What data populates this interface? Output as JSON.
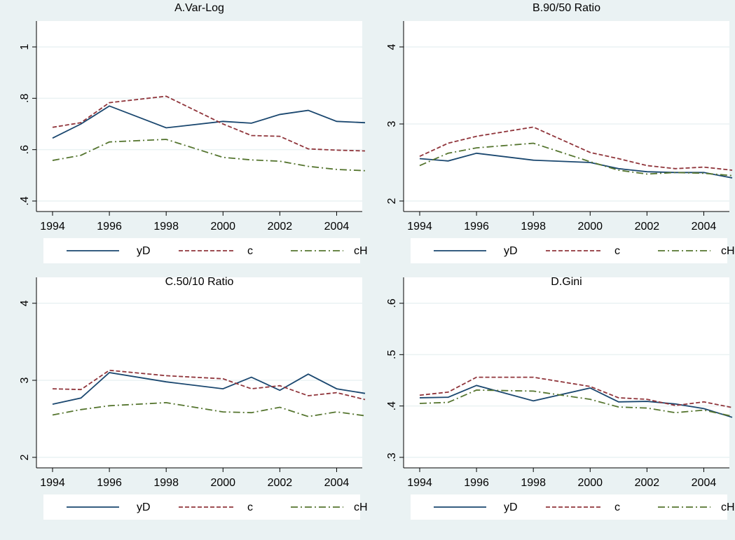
{
  "chart_data": [
    {
      "type": "line",
      "title": "A.Var-Log",
      "x": [
        1994,
        1995,
        1996,
        1998,
        2000,
        2001,
        2002,
        2003,
        2004,
        2005
      ],
      "xlim": [
        1994,
        2005
      ],
      "xticks": [
        1994,
        1996,
        1998,
        2000,
        2002,
        2004
      ],
      "ylim": [
        0.4,
        1
      ],
      "yticks": [
        {
          "value": 0.4,
          "label": ".4"
        },
        {
          "value": 0.6,
          "label": ".6"
        },
        {
          "value": 0.8,
          "label": ".8"
        },
        1
      ],
      "grid": true,
      "series": [
        {
          "name": "yD",
          "color": "#1a476f",
          "dash": "solid",
          "values": [
            0.645,
            0.7,
            0.77,
            0.685,
            0.71,
            0.703,
            0.737,
            0.753,
            0.71,
            0.705
          ]
        },
        {
          "name": "c",
          "color": "#90353b",
          "dash": "dashed",
          "values": [
            0.687,
            0.705,
            0.783,
            0.808,
            0.7,
            0.655,
            0.652,
            0.603,
            0.598,
            0.595
          ]
        },
        {
          "name": "cH",
          "color": "#55752f",
          "dash": "dashdot",
          "values": [
            0.558,
            0.578,
            0.63,
            0.64,
            0.57,
            0.56,
            0.555,
            0.535,
            0.523,
            0.518
          ]
        }
      ]
    },
    {
      "type": "line",
      "title": "B.90/50 Ratio",
      "x": [
        1994,
        1995,
        1996,
        1998,
        2000,
        2001,
        2002,
        2003,
        2004,
        2005
      ],
      "xlim": [
        1994,
        2005
      ],
      "xticks": [
        1994,
        1996,
        1998,
        2000,
        2002,
        2004
      ],
      "ylim": [
        2,
        4
      ],
      "yticks": [
        2,
        3,
        4
      ],
      "grid": true,
      "series": [
        {
          "name": "yD",
          "color": "#1a476f",
          "dash": "solid",
          "values": [
            2.55,
            2.52,
            2.62,
            2.53,
            2.5,
            2.42,
            2.38,
            2.37,
            2.37,
            2.3
          ]
        },
        {
          "name": "c",
          "color": "#90353b",
          "dash": "dashed",
          "values": [
            2.58,
            2.75,
            2.84,
            2.96,
            2.63,
            2.55,
            2.46,
            2.42,
            2.44,
            2.4
          ]
        },
        {
          "name": "cH",
          "color": "#55752f",
          "dash": "dashdot",
          "values": [
            2.46,
            2.62,
            2.69,
            2.75,
            2.51,
            2.4,
            2.35,
            2.37,
            2.36,
            2.33
          ]
        }
      ]
    },
    {
      "type": "line",
      "title": "C.50/10 Ratio",
      "x": [
        1994,
        1995,
        1996,
        1998,
        2000,
        2001,
        2002,
        2003,
        2004,
        2005
      ],
      "xlim": [
        1994,
        2005
      ],
      "xticks": [
        1994,
        1996,
        1998,
        2000,
        2002,
        2004
      ],
      "ylim": [
        2,
        4
      ],
      "yticks": [
        2,
        3,
        4
      ],
      "grid": true,
      "series": [
        {
          "name": "yD",
          "color": "#1a476f",
          "dash": "solid",
          "values": [
            2.69,
            2.77,
            3.1,
            2.98,
            2.89,
            3.04,
            2.87,
            3.08,
            2.89,
            2.83
          ]
        },
        {
          "name": "c",
          "color": "#90353b",
          "dash": "dashed",
          "values": [
            2.89,
            2.88,
            3.13,
            3.06,
            3.02,
            2.89,
            2.93,
            2.8,
            2.84,
            2.75
          ]
        },
        {
          "name": "cH",
          "color": "#55752f",
          "dash": "dashdot",
          "values": [
            2.55,
            2.62,
            2.67,
            2.71,
            2.59,
            2.58,
            2.65,
            2.53,
            2.59,
            2.54
          ]
        }
      ]
    },
    {
      "type": "line",
      "title": "D.Gini",
      "x": [
        1994,
        1995,
        1996,
        1998,
        2000,
        2001,
        2002,
        2003,
        2004,
        2005
      ],
      "xlim": [
        1994,
        2005
      ],
      "xticks": [
        1994,
        1996,
        1998,
        2000,
        2002,
        2004
      ],
      "ylim": [
        0.3,
        0.6
      ],
      "yticks": [
        {
          "value": 0.3,
          "label": ".3"
        },
        {
          "value": 0.4,
          "label": ".4"
        },
        {
          "value": 0.5,
          "label": ".5"
        },
        {
          "value": 0.6,
          "label": ".6"
        }
      ],
      "grid": true,
      "series": [
        {
          "name": "yD",
          "color": "#1a476f",
          "dash": "solid",
          "values": [
            0.416,
            0.417,
            0.44,
            0.41,
            0.435,
            0.408,
            0.409,
            0.404,
            0.395,
            0.378
          ]
        },
        {
          "name": "c",
          "color": "#90353b",
          "dash": "dashed",
          "values": [
            0.421,
            0.427,
            0.456,
            0.456,
            0.438,
            0.416,
            0.413,
            0.401,
            0.408,
            0.397
          ]
        },
        {
          "name": "cH",
          "color": "#55752f",
          "dash": "dashdot",
          "values": [
            0.405,
            0.407,
            0.431,
            0.429,
            0.413,
            0.398,
            0.396,
            0.387,
            0.392,
            0.38
          ]
        }
      ]
    }
  ]
}
